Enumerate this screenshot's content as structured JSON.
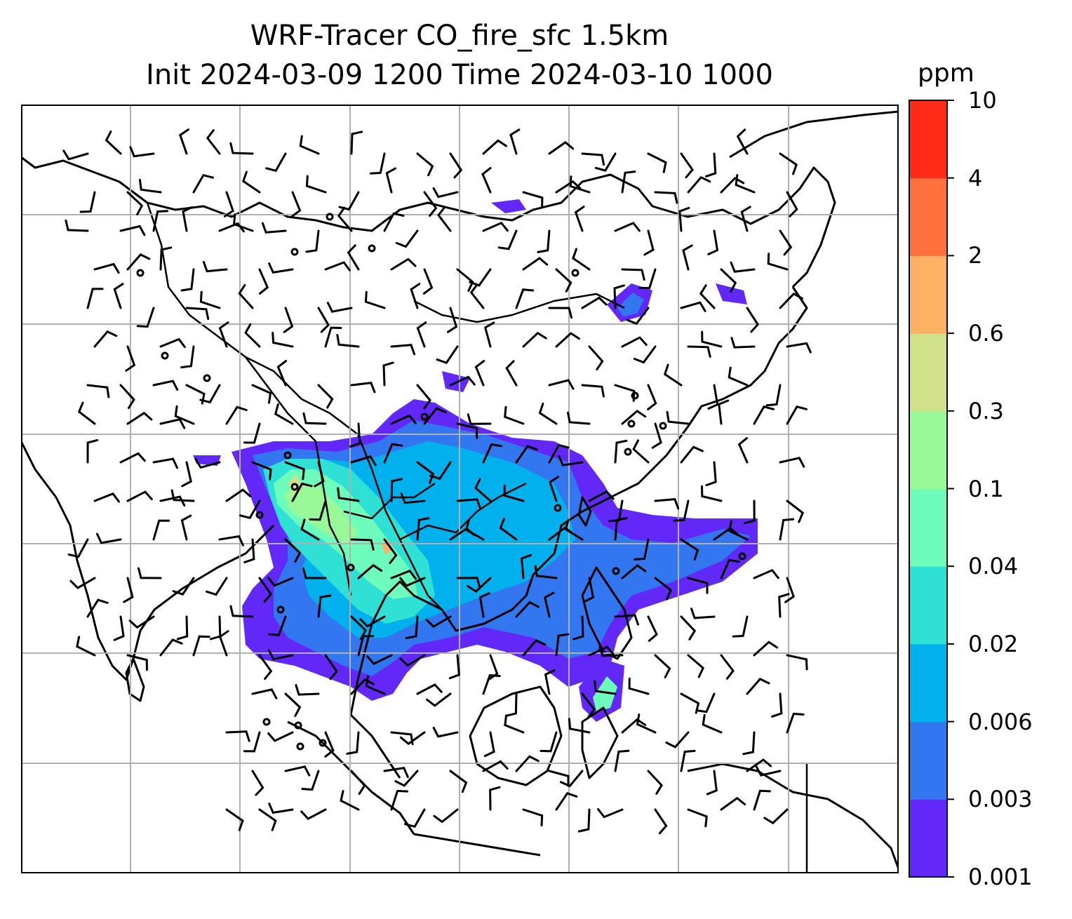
{
  "title": {
    "line1": "WRF-Tracer CO_fire_sfc 1.5km",
    "line2": "Init 2024-03-09 1200 Time 2024-03-10 1000"
  },
  "colorbar": {
    "unit": "ppm",
    "levels": [
      "0.001",
      "0.003",
      "0.006",
      "0.02",
      "0.04",
      "0.1",
      "0.3",
      "0.6",
      "2",
      "4",
      "10"
    ],
    "colors": [
      "#6228f8",
      "#3377f0",
      "#00b1ee",
      "#2fe0d4",
      "#6dfcbc",
      "#99f996",
      "#d0e189",
      "#fdb163",
      "#fe703e",
      "#ff2a17"
    ]
  },
  "map": {
    "gridlines": true,
    "features": [
      "coastlines",
      "country-borders",
      "wind-barbs",
      "co-concentration-field"
    ],
    "region": "South and Southeast Asia"
  }
}
